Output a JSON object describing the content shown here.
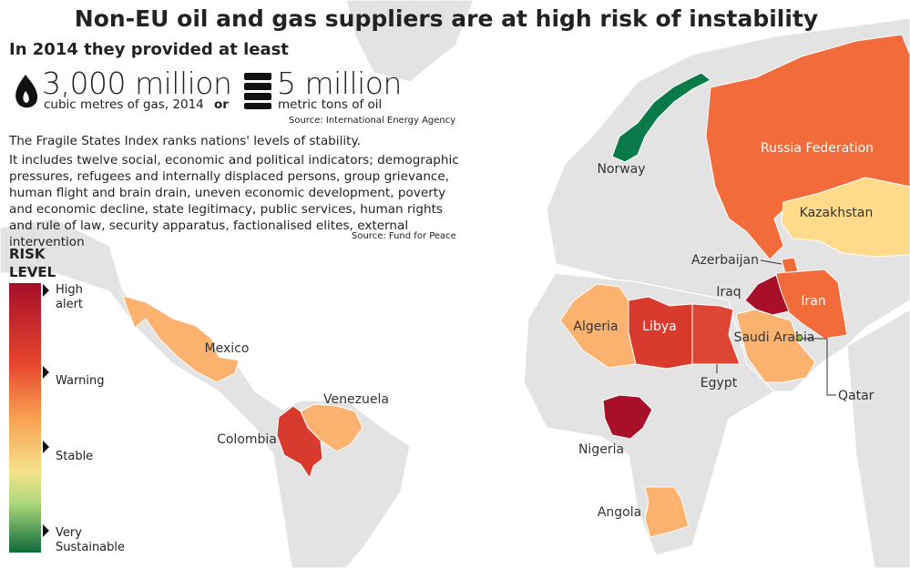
{
  "header": {
    "title": "Non-EU oil and gas suppliers are at high risk of instability"
  },
  "stats": {
    "intro": "In 2014 they provided at least",
    "gas": {
      "amount": "3,000 million",
      "unit": "cubic metres of gas, 2014"
    },
    "connector": "or",
    "oil": {
      "amount": "5 million",
      "unit": "metric tons of oil"
    },
    "source": "Source: International Energy Agency"
  },
  "description": {
    "lead": "The Fragile States Index ranks nations' levels of stability.",
    "body": "It includes twelve social, economic and political indicators; demographic pressures, refugees and internally displaced persons, group grievance, human flight and brain drain, uneven economic development, poverty and economic decline, state legitimacy, public services, human rights and rule of law, security apparatus, factionalised elites, external intervention",
    "source": "Source: Fund for Peace"
  },
  "legend": {
    "title": [
      "RISK",
      "LEVEL"
    ],
    "levels": [
      [
        "High",
        "alert"
      ],
      [
        "Warning"
      ],
      [
        "Stable"
      ],
      [
        "Very",
        "Sustainable"
      ]
    ]
  },
  "countries": [
    {
      "label": "Norway"
    },
    {
      "label": "Russia Federation"
    },
    {
      "label": "Kazakhstan"
    },
    {
      "label": "Azerbaijan"
    },
    {
      "label": "Iraq"
    },
    {
      "label": "Iran"
    },
    {
      "label": "Algeria"
    },
    {
      "label": "Libya"
    },
    {
      "label": "Saudi Arabia"
    },
    {
      "label": "Egypt"
    },
    {
      "label": "Qatar"
    },
    {
      "label": "Mexico"
    },
    {
      "label": "Venezuela"
    },
    {
      "label": "Colombia"
    },
    {
      "label": "Nigeria"
    },
    {
      "label": "Angola"
    }
  ]
}
